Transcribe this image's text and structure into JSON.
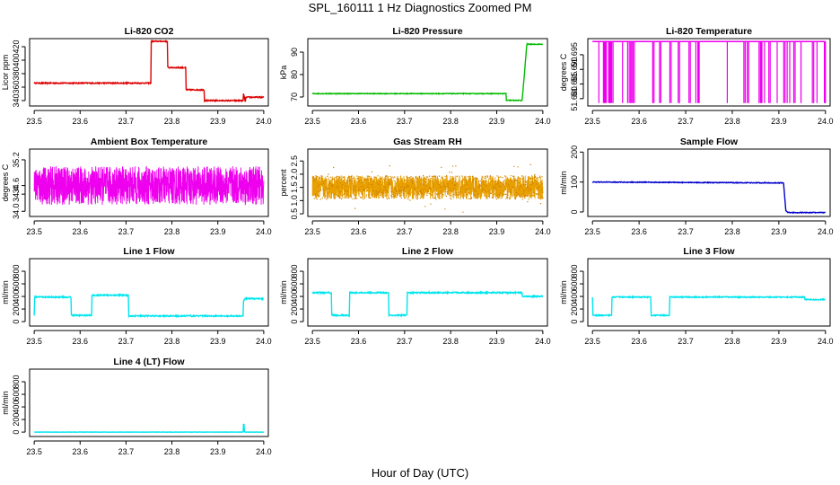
{
  "figure": {
    "title": "SPL_160111  1 Hz Diagnostics Zoomed PM",
    "xlabel": "Hour of Day (UTC)"
  },
  "chart_data": [
    {
      "type": "line",
      "title": "Li-820 CO2",
      "ylabel": "Licor ppm",
      "color": "#dd0000",
      "xlim": [
        23.49,
        24.01
      ],
      "ylim": [
        332,
        432
      ],
      "xticks": [
        "23.5",
        "23.6",
        "23.7",
        "23.8",
        "23.9",
        "24.0"
      ],
      "yticks": [
        "340",
        "360",
        "380",
        "400",
        "420"
      ],
      "series": [
        {
          "name": "CO2",
          "x": [
            23.5,
            23.754,
            23.755,
            23.79,
            23.791,
            23.83,
            23.831,
            23.87,
            23.871,
            23.955,
            23.956,
            23.96,
            23.961,
            24.0
          ],
          "y": [
            366,
            366,
            428,
            428,
            389,
            389,
            356,
            356,
            340,
            340,
            350,
            338,
            345,
            345
          ]
        }
      ],
      "noise": 0.8,
      "dense": false
    },
    {
      "type": "line",
      "title": "Li-820 Pressure",
      "ylabel": "kPa",
      "color": "#00bb00",
      "xlim": [
        23.49,
        24.01
      ],
      "ylim": [
        66,
        96
      ],
      "xticks": [
        "23.5",
        "23.6",
        "23.7",
        "23.8",
        "23.9",
        "24.0"
      ],
      "yticks": [
        "70",
        "80",
        "90"
      ],
      "series": [
        {
          "name": "Pressure",
          "x": [
            23.5,
            23.92,
            23.921,
            23.955,
            23.96,
            23.965,
            23.966,
            24.0
          ],
          "y": [
            71.5,
            71.5,
            68.5,
            68.5,
            80,
            93,
            93.5,
            93.5
          ]
        }
      ],
      "noise": 0.15,
      "dense": false
    },
    {
      "type": "line",
      "title": "Li-820 Temperature",
      "ylabel": "degrees C",
      "color": "#ee00ee",
      "xlim": [
        23.49,
        24.01
      ],
      "ylim": [
        51.6775,
        51.7005
      ],
      "xticks": [
        "23.5",
        "23.6",
        "23.7",
        "23.8",
        "23.9",
        "24.0"
      ],
      "yticks": [
        "51.680",
        "51.685",
        "51.690",
        "51.695"
      ],
      "series": [
        {
          "name": "Temperature",
          "x": [
            23.5,
            24.0
          ],
          "y": [
            51.6995,
            51.6995
          ]
        }
      ],
      "spikes": {
        "low": 51.6785,
        "count": 42
      },
      "noise": 0,
      "dense": false
    },
    {
      "type": "line",
      "title": "Ambient Box Temperature",
      "ylabel": "degrees C",
      "color": "#ee00ee",
      "xlim": [
        23.49,
        24.01
      ],
      "ylim": [
        33.88,
        35.45
      ],
      "xticks": [
        "23.5",
        "23.6",
        "23.7",
        "23.8",
        "23.9",
        "24.0"
      ],
      "yticks": [
        "34.0",
        "34.4",
        "34.6",
        "35.2"
      ],
      "series": [
        {
          "name": "Box Temp",
          "x": [
            23.5,
            24.0
          ],
          "y": [
            34.6,
            34.6
          ]
        }
      ],
      "noise": 0.45,
      "dense": true
    },
    {
      "type": "line",
      "title": "Gas Stream RH",
      "ylabel": "percent",
      "color": "#e8a000",
      "xlim": [
        23.49,
        24.01
      ],
      "ylim": [
        0.4,
        2.95
      ],
      "xticks": [
        "23.5",
        "23.6",
        "23.7",
        "23.8",
        "23.9",
        "24.0"
      ],
      "yticks": [
        "0.5",
        "1.0",
        "1.5",
        "2.0",
        "2.5"
      ],
      "series": [
        {
          "name": "RH",
          "x": [
            23.5,
            24.0
          ],
          "y": [
            1.5,
            1.5
          ]
        }
      ],
      "noise": 0.45,
      "dense": true,
      "markers": true
    },
    {
      "type": "line",
      "title": "Sample Flow",
      "ylabel": "ml/min",
      "color": "#0000cc",
      "xlim": [
        23.49,
        24.01
      ],
      "ylim": [
        -15,
        210
      ],
      "xticks": [
        "23.5",
        "23.6",
        "23.7",
        "23.8",
        "23.9",
        "24.0"
      ],
      "yticks": [
        "0",
        "100",
        "200"
      ],
      "series": [
        {
          "name": "Sample Flow",
          "x": [
            23.5,
            23.91,
            23.912,
            23.915,
            23.92,
            24.0
          ],
          "y": [
            100,
            97,
            60,
            5,
            -2,
            -2
          ]
        }
      ],
      "noise": 1.2,
      "dense": false
    },
    {
      "type": "line",
      "title": "Line 1 Flow",
      "ylabel": "ml/min",
      "color": "#00e5ee",
      "xlim": [
        23.49,
        24.01
      ],
      "ylim": [
        -70,
        1000
      ],
      "xticks": [
        "23.5",
        "23.6",
        "23.7",
        "23.8",
        "23.9",
        "24.0"
      ],
      "yticks": [
        "0",
        "200",
        "400",
        "600",
        "800"
      ],
      "series": [
        {
          "name": "Line 1",
          "x": [
            23.5,
            23.501,
            23.58,
            23.581,
            23.625,
            23.626,
            23.705,
            23.706,
            23.955,
            23.956,
            23.96,
            24.0
          ],
          "y": [
            100,
            390,
            390,
            100,
            100,
            420,
            420,
            90,
            90,
            330,
            370,
            360
          ]
        }
      ],
      "noise": 10,
      "dense": false
    },
    {
      "type": "line",
      "title": "Line 2 Flow",
      "ylabel": "ml/min",
      "color": "#00e5ee",
      "xlim": [
        23.49,
        24.01
      ],
      "ylim": [
        -70,
        1000
      ],
      "xticks": [
        "23.5",
        "23.6",
        "23.7",
        "23.8",
        "23.9",
        "24.0"
      ],
      "yticks": [
        "0",
        "200",
        "400",
        "600",
        "800"
      ],
      "series": [
        {
          "name": "Line 2",
          "x": [
            23.5,
            23.541,
            23.542,
            23.58,
            23.581,
            23.665,
            23.666,
            23.705,
            23.706,
            23.955,
            23.956,
            24.0
          ],
          "y": [
            460,
            460,
            100,
            100,
            460,
            460,
            100,
            100,
            460,
            460,
            400,
            400
          ]
        }
      ],
      "noise": 10,
      "dense": false
    },
    {
      "type": "line",
      "title": "Line 3 Flow",
      "ylabel": "ml/min",
      "color": "#00e5ee",
      "xlim": [
        23.49,
        24.01
      ],
      "ylim": [
        -70,
        1000
      ],
      "xticks": [
        "23.5",
        "23.6",
        "23.7",
        "23.8",
        "23.9",
        "24.0"
      ],
      "yticks": [
        "0",
        "200",
        "400",
        "600",
        "800"
      ],
      "series": [
        {
          "name": "Line 3",
          "x": [
            23.5,
            23.501,
            23.541,
            23.542,
            23.625,
            23.626,
            23.665,
            23.666,
            23.955,
            23.956,
            24.0
          ],
          "y": [
            390,
            100,
            100,
            390,
            390,
            100,
            100,
            390,
            390,
            350,
            350
          ]
        }
      ],
      "noise": 8,
      "dense": false
    },
    {
      "type": "line",
      "title": "Line 4 (LT) Flow",
      "ylabel": "ml/min",
      "color": "#00e5ee",
      "xlim": [
        23.49,
        24.01
      ],
      "ylim": [
        -70,
        1000
      ],
      "xticks": [
        "23.5",
        "23.6",
        "23.7",
        "23.8",
        "23.9",
        "24.0"
      ],
      "yticks": [
        "0",
        "200",
        "400",
        "600",
        "800"
      ],
      "series": [
        {
          "name": "Line 4",
          "x": [
            23.5,
            23.955,
            23.956,
            23.957,
            23.958,
            24.0
          ],
          "y": [
            0,
            0,
            130,
            130,
            0,
            0
          ]
        }
      ],
      "noise": 2,
      "dense": false
    }
  ]
}
